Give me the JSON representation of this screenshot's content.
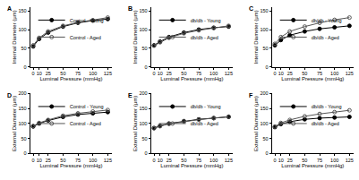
{
  "chart_data": [
    {
      "type": "line",
      "title": "A",
      "x_label": "Luminal Pressure (mmHg)",
      "y_label": "Internal Diameter (µm)",
      "x": [
        0,
        10,
        25,
        50,
        75,
        100,
        125
      ],
      "xlim": [
        -5,
        132
      ],
      "xticks": [
        0,
        10,
        25,
        50,
        75,
        100,
        125
      ],
      "ylim": [
        0,
        160
      ],
      "yticks": [
        0,
        50,
        100,
        150
      ],
      "grid": false,
      "legend": "top left",
      "series": [
        {
          "name": "Control - Young",
          "color": "#000000",
          "marker": "circle",
          "values": [
            55,
            75,
            92,
            108,
            118,
            124,
            128
          ]
        },
        {
          "name": "Control - Aged",
          "color": "#555555",
          "marker": "circle-open",
          "values": [
            58,
            78,
            95,
            110,
            119,
            125,
            132
          ]
        }
      ]
    },
    {
      "type": "line",
      "title": "B",
      "x_label": "Luminal Pressure (mmHg)",
      "y_label": "Internal Diameter (µm)",
      "x": [
        0,
        10,
        25,
        50,
        75,
        100,
        125
      ],
      "xlim": [
        -5,
        132
      ],
      "xticks": [
        0,
        10,
        25,
        50,
        75,
        100,
        125
      ],
      "ylim": [
        0,
        160
      ],
      "yticks": [
        0,
        50,
        100,
        150
      ],
      "grid": false,
      "legend": "top left",
      "series": [
        {
          "name": "db/db - Young",
          "color": "#000000",
          "marker": "circle",
          "values": [
            58,
            68,
            80,
            92,
            100,
            105,
            108
          ]
        },
        {
          "name": "db/db - Aged",
          "color": "#555555",
          "marker": "circle-open",
          "values": [
            57,
            66,
            78,
            90,
            98,
            104,
            110
          ]
        }
      ]
    },
    {
      "type": "line",
      "title": "C",
      "x_label": "Luminal Pressure (mmHg)",
      "y_label": "Internal Diameter (µm)",
      "x": [
        0,
        10,
        25,
        50,
        75,
        100,
        125
      ],
      "xlim": [
        -5,
        132
      ],
      "xticks": [
        0,
        10,
        25,
        50,
        75,
        100,
        125
      ],
      "ylim": [
        0,
        160
      ],
      "yticks": [
        0,
        50,
        100,
        150
      ],
      "grid": false,
      "legend": "top left",
      "series": [
        {
          "name": "db/db - Young",
          "color": "#000000",
          "marker": "circle",
          "values": [
            58,
            72,
            85,
            95,
            102,
            106,
            110
          ]
        },
        {
          "name": "db/db - Aged",
          "color": "#555555",
          "marker": "circle-open",
          "values": [
            62,
            80,
            95,
            108,
            118,
            126,
            132
          ]
        }
      ]
    },
    {
      "type": "line",
      "title": "D",
      "x_label": "Luminal Pressure (mmHg)",
      "y_label": "External Diameter (µm)",
      "x": [
        0,
        10,
        25,
        50,
        75,
        100,
        125
      ],
      "xlim": [
        -5,
        132
      ],
      "xticks": [
        0,
        10,
        25,
        50,
        75,
        100,
        125
      ],
      "ylim": [
        0,
        200
      ],
      "yticks": [
        0,
        50,
        100,
        150,
        200
      ],
      "grid": false,
      "legend": "top left",
      "series": [
        {
          "name": "Control - Young",
          "color": "#000000",
          "marker": "circle",
          "values": [
            90,
            100,
            110,
            122,
            130,
            134,
            138
          ]
        },
        {
          "name": "Control - Aged",
          "color": "#555555",
          "marker": "circle-open",
          "values": [
            92,
            102,
            112,
            126,
            134,
            140,
            145
          ]
        }
      ]
    },
    {
      "type": "line",
      "title": "E",
      "x_label": "Luminal Pressure (mmHg)",
      "y_label": "External Diameter (µm)",
      "x": [
        0,
        10,
        25,
        50,
        75,
        100,
        125
      ],
      "xlim": [
        -5,
        132
      ],
      "xticks": [
        0,
        10,
        25,
        50,
        75,
        100,
        125
      ],
      "ylim": [
        0,
        200
      ],
      "yticks": [
        0,
        50,
        100,
        150,
        200
      ],
      "grid": false,
      "legend": "top left",
      "series": [
        {
          "name": "db/db - Young",
          "color": "#000000",
          "marker": "circle",
          "values": [
            85,
            92,
            100,
            108,
            114,
            118,
            122
          ]
        },
        {
          "name": "db/db - Aged",
          "color": "#555555",
          "marker": "circle-open",
          "values": [
            84,
            91,
            99,
            107,
            113,
            118,
            123
          ]
        }
      ]
    },
    {
      "type": "line",
      "title": "F",
      "x_label": "Luminal Pressure (mmHg)",
      "y_label": "External Diameter (µm)",
      "x": [
        0,
        10,
        25,
        50,
        75,
        100,
        125
      ],
      "xlim": [
        -5,
        132
      ],
      "xticks": [
        0,
        10,
        25,
        50,
        75,
        100,
        125
      ],
      "ylim": [
        0,
        200
      ],
      "yticks": [
        0,
        50,
        100,
        150,
        200
      ],
      "grid": false,
      "legend": "top left",
      "series": [
        {
          "name": "db/db - Young",
          "color": "#000000",
          "marker": "circle",
          "values": [
            88,
            98,
            106,
            114,
            118,
            120,
            122
          ]
        },
        {
          "name": "db/db - Aged",
          "color": "#555555",
          "marker": "circle-open",
          "values": [
            90,
            102,
            112,
            124,
            132,
            138,
            144
          ]
        }
      ]
    }
  ]
}
